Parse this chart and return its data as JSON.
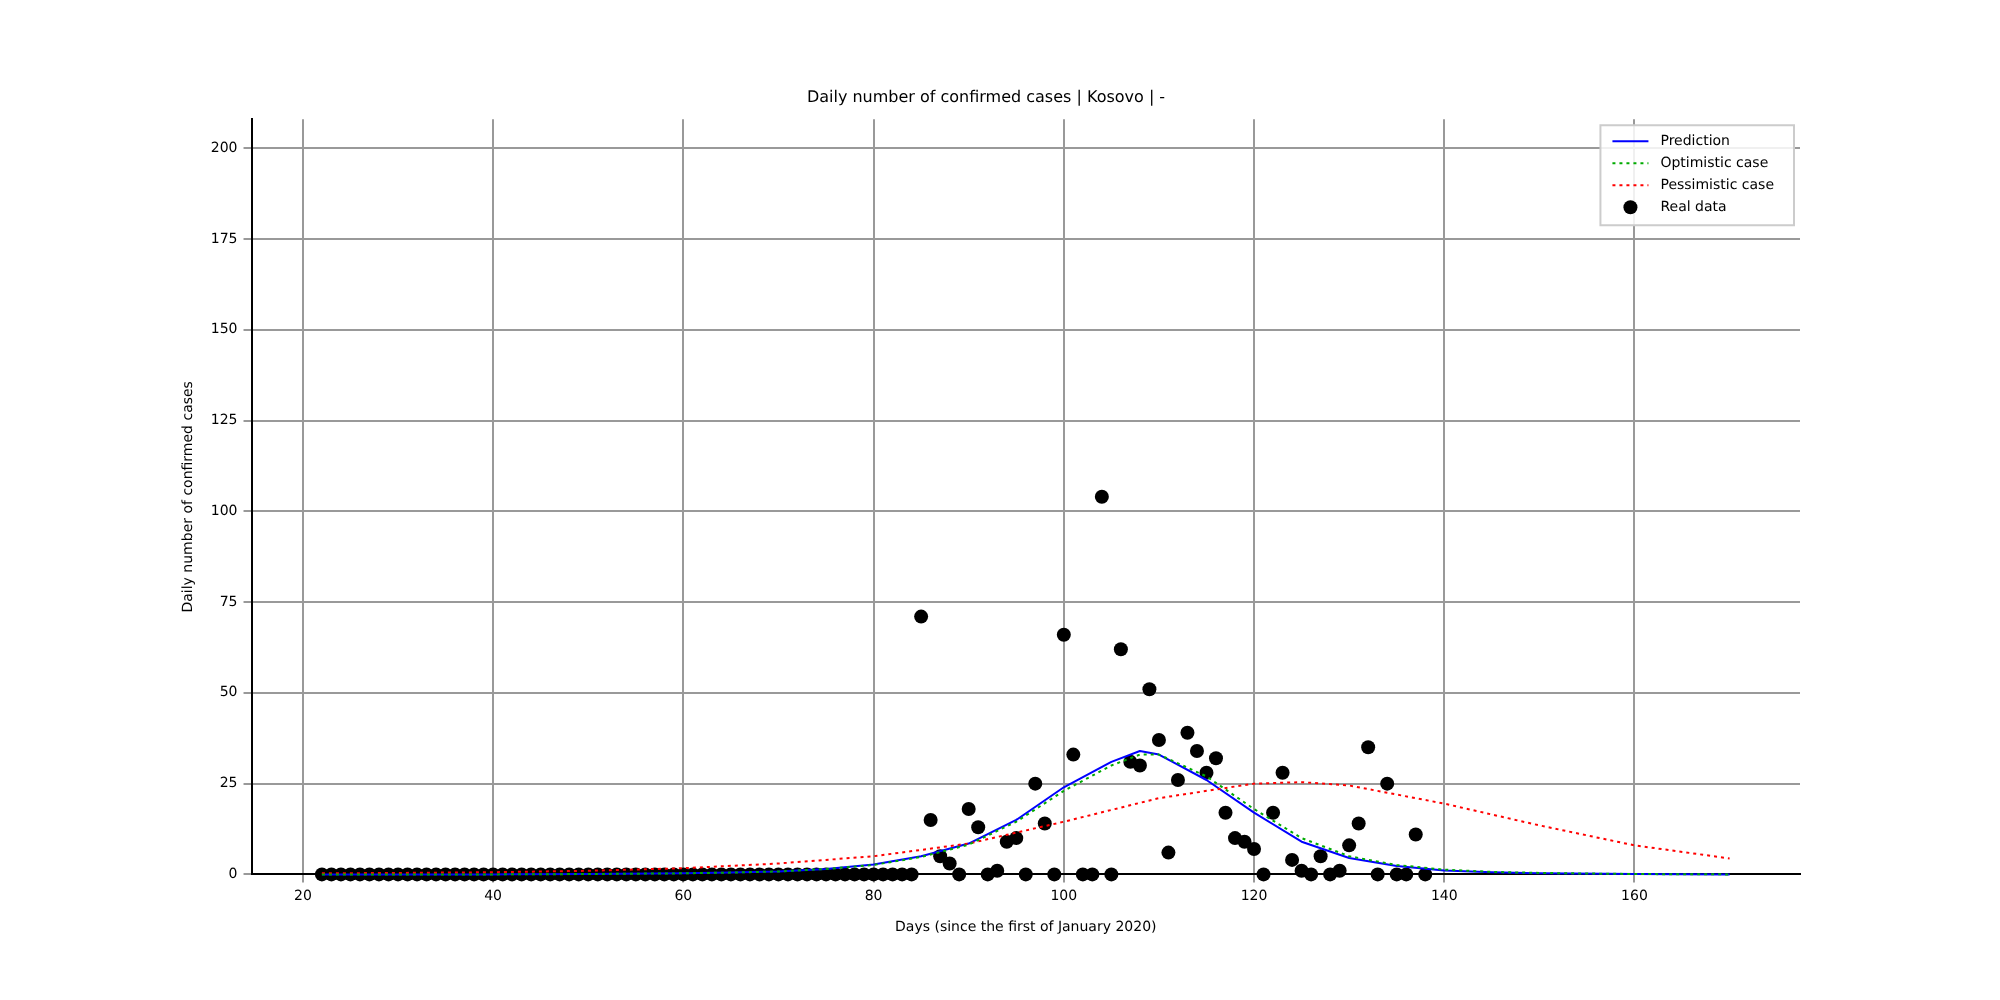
{
  "chart_data": {
    "type": "line",
    "title": "Daily number of confirmed cases | Kosovo | -",
    "xlabel": "Days (since the first of January 2020)",
    "ylabel": "Daily number of confirmed cases",
    "xlim": [
      14.6,
      177.4
    ],
    "xticks": [
      20,
      40,
      60,
      80,
      100,
      120,
      140,
      160
    ],
    "ylim": [
      0,
      208
    ],
    "yticks": [
      0,
      25,
      50,
      75,
      100,
      125,
      150,
      175,
      200
    ],
    "grid": true,
    "legend": "top right",
    "series": [
      {
        "name": "Prediction",
        "type": "line",
        "color": "#0000ff",
        "line_style": "solid",
        "marker": "none",
        "x": [
          22,
          30,
          40,
          50,
          60,
          65,
          70,
          75,
          80,
          85,
          90,
          95,
          100,
          105,
          108,
          110,
          115,
          120,
          125,
          130,
          135,
          140,
          145,
          150,
          160,
          170
        ],
        "values": [
          0,
          0,
          0,
          0.1,
          0.3,
          0.5,
          0.8,
          1.5,
          2.7,
          5,
          8.5,
          15,
          24,
          31,
          34,
          33,
          26,
          17,
          9,
          4.5,
          2.3,
          1.1,
          0.6,
          0.3,
          0.1,
          0
        ]
      },
      {
        "name": "Optimistic case",
        "type": "line",
        "color": "#00aa00",
        "line_style": "dotted",
        "marker": "none",
        "x": [
          22,
          30,
          40,
          50,
          60,
          65,
          70,
          75,
          80,
          85,
          90,
          95,
          100,
          105,
          108,
          110,
          115,
          120,
          125,
          130,
          135,
          140,
          145,
          150,
          160,
          170
        ],
        "values": [
          0,
          0,
          0,
          0.1,
          0.3,
          0.5,
          0.8,
          1.5,
          2.6,
          4.8,
          8.2,
          14.5,
          23,
          30,
          33,
          33,
          27,
          18,
          10,
          5,
          2.6,
          1.3,
          0.7,
          0.4,
          0.1,
          0
        ]
      },
      {
        "name": "Pessimistic case",
        "type": "line",
        "color": "#ff0000",
        "line_style": "dotted",
        "marker": "none",
        "x": [
          22,
          30,
          40,
          50,
          60,
          70,
          80,
          90,
          100,
          110,
          120,
          125,
          130,
          140,
          150,
          160,
          170
        ],
        "values": [
          0.3,
          0.4,
          0.6,
          1,
          1.7,
          3,
          5,
          8.5,
          14.5,
          21,
          25,
          25.4,
          24.5,
          19.5,
          13.5,
          8,
          4.4
        ]
      },
      {
        "name": "Real data",
        "type": "scatter",
        "color": "#000000",
        "marker": "circle",
        "x": [
          22,
          23,
          24,
          25,
          26,
          27,
          28,
          29,
          30,
          31,
          32,
          33,
          34,
          35,
          36,
          37,
          38,
          39,
          40,
          41,
          42,
          43,
          44,
          45,
          46,
          47,
          48,
          49,
          50,
          51,
          52,
          53,
          54,
          55,
          56,
          57,
          58,
          59,
          60,
          61,
          62,
          63,
          64,
          65,
          66,
          67,
          68,
          69,
          70,
          71,
          72,
          73,
          74,
          75,
          76,
          77,
          78,
          79,
          80,
          81,
          82,
          83,
          84,
          85,
          86,
          87,
          88,
          89,
          90,
          91,
          92,
          93,
          94,
          95,
          96,
          97,
          98,
          99,
          100,
          101,
          102,
          103,
          104,
          105,
          106,
          107,
          108,
          109,
          110,
          111,
          112,
          113,
          114,
          115,
          116,
          117,
          118,
          119,
          120,
          121,
          122,
          123,
          124,
          125,
          126,
          127,
          128,
          129,
          130,
          131,
          132,
          133,
          134,
          135,
          136,
          137,
          138
        ],
        "values": [
          0,
          0,
          0,
          0,
          0,
          0,
          0,
          0,
          0,
          0,
          0,
          0,
          0,
          0,
          0,
          0,
          0,
          0,
          0,
          0,
          0,
          0,
          0,
          0,
          0,
          0,
          0,
          0,
          0,
          0,
          0,
          0,
          0,
          0,
          0,
          0,
          0,
          0,
          0,
          0,
          0,
          0,
          0,
          0,
          0,
          0,
          0,
          0,
          0,
          0,
          0,
          0,
          0,
          0,
          0,
          0,
          0,
          0,
          0,
          0,
          0,
          0,
          0,
          71,
          15,
          5,
          3,
          0,
          18,
          13,
          0,
          1,
          9,
          10,
          0,
          25,
          14,
          0,
          66,
          33,
          0,
          0,
          104,
          0,
          62,
          31,
          30,
          51,
          37,
          6,
          26,
          39,
          34,
          28,
          32,
          17,
          10,
          9,
          7,
          0,
          17,
          28,
          4,
          1,
          0,
          5,
          0,
          1,
          8,
          14,
          35,
          0,
          25,
          0,
          0,
          11,
          0
        ]
      }
    ]
  }
}
